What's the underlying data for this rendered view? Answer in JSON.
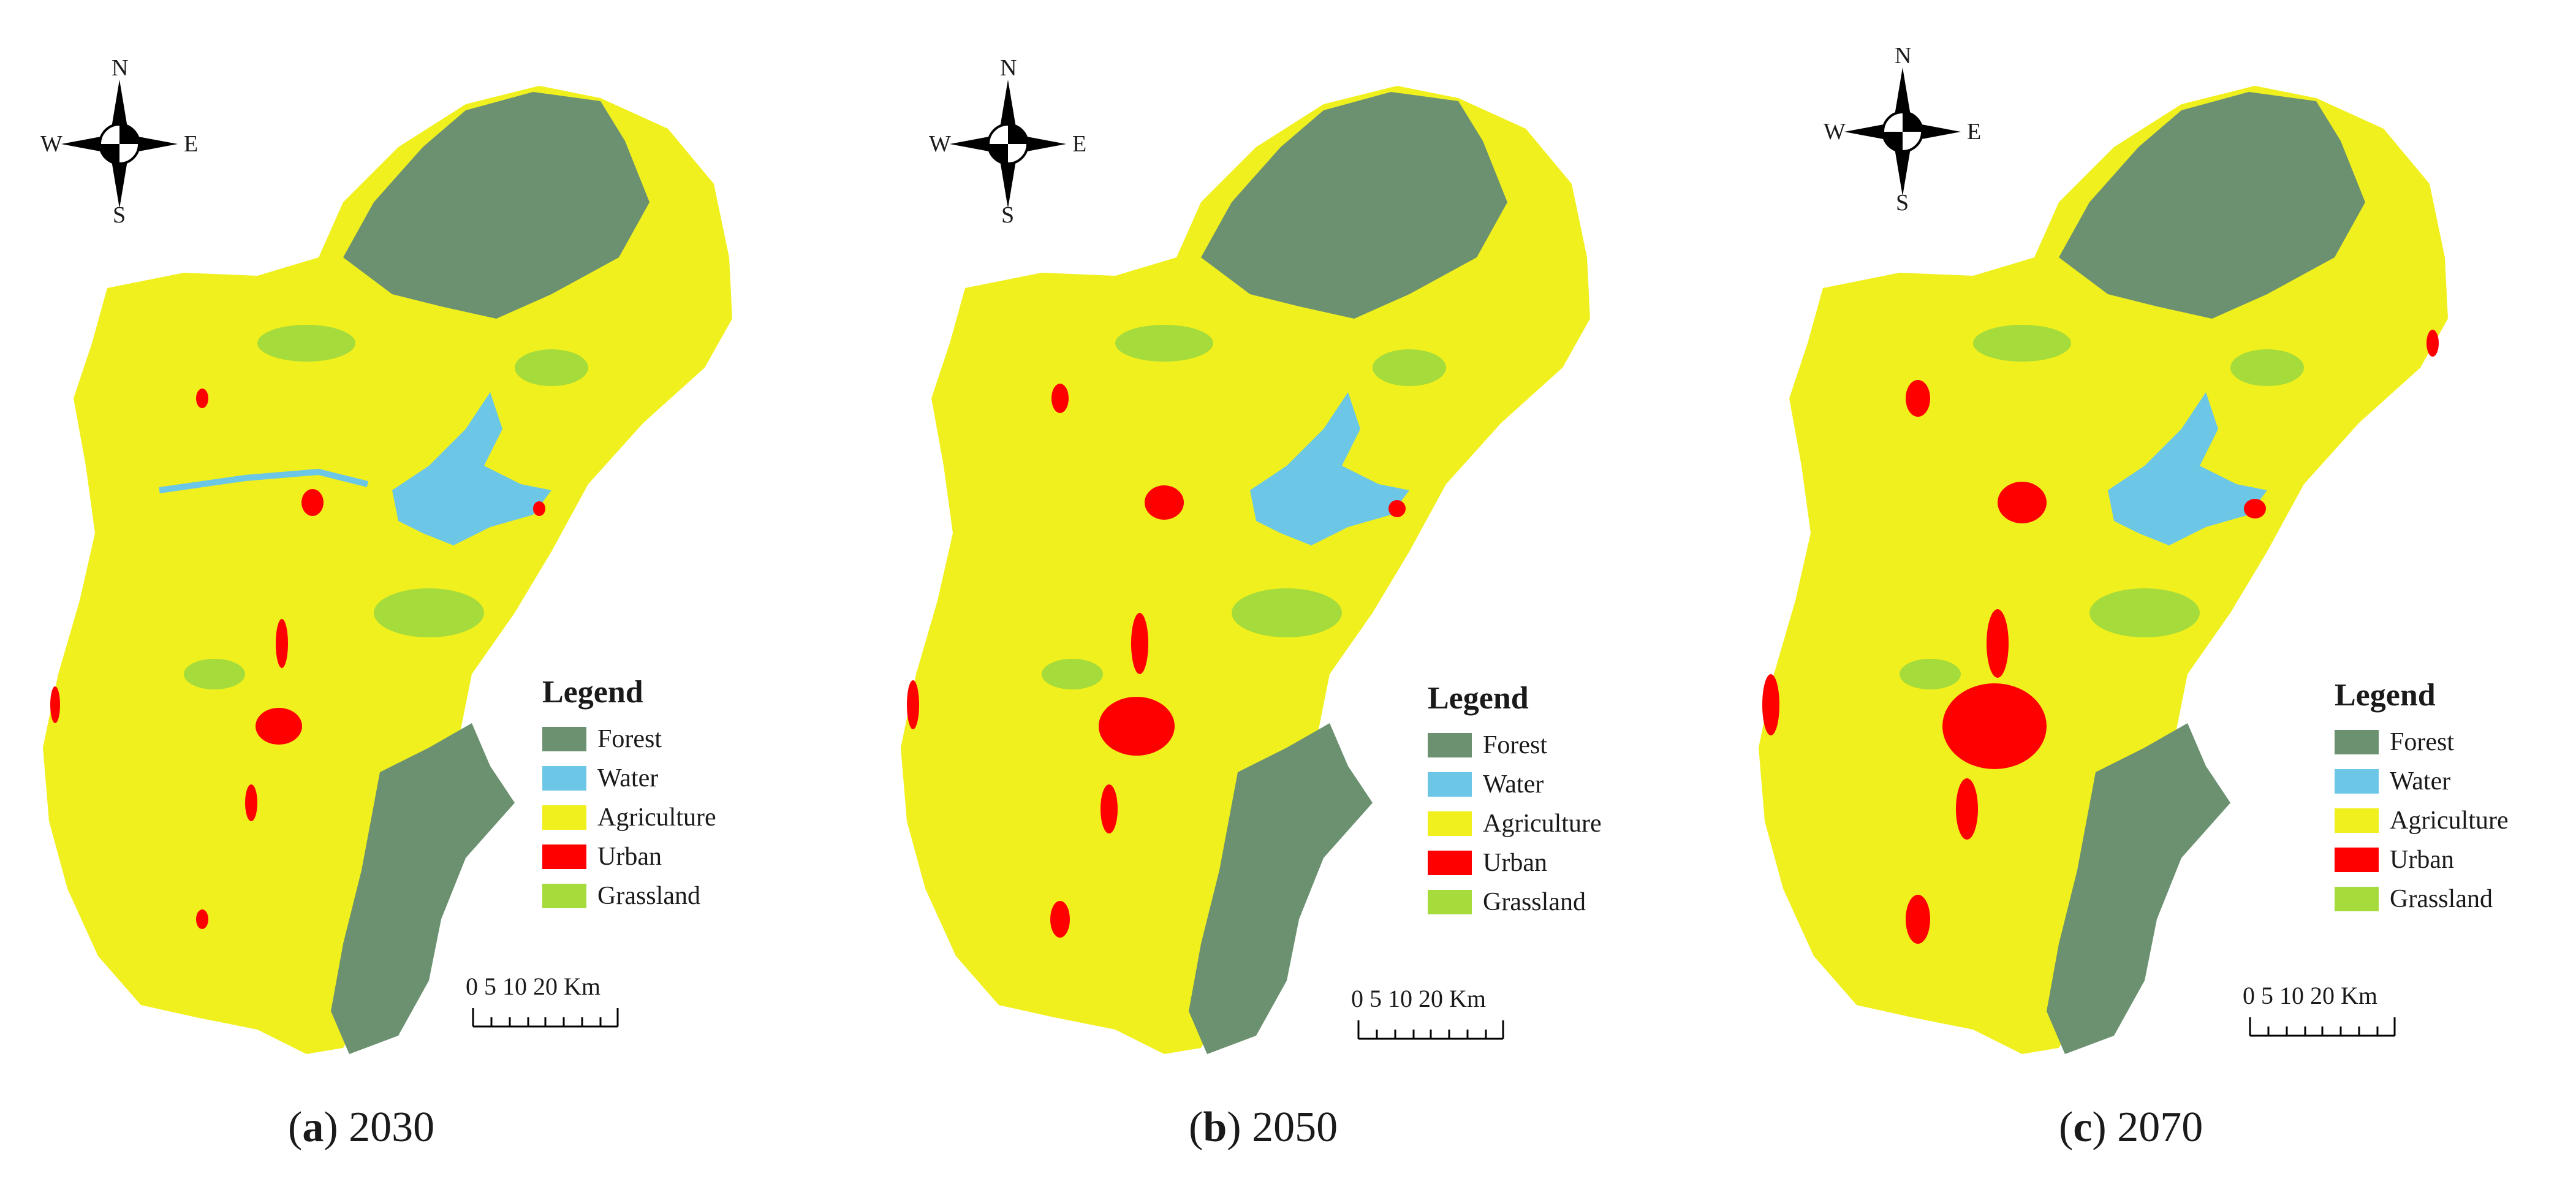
{
  "colors": {
    "forest": "#6b9170",
    "water": "#6cc6e6",
    "agriculture": "#f0f01e",
    "urban": "#ff0000",
    "grassland": "#a5db3a"
  },
  "compass": {
    "n": "N",
    "s": "S",
    "e": "E",
    "w": "W",
    "icon": "north-arrow-icon"
  },
  "legend": {
    "title": "Legend",
    "items": [
      {
        "label": "Forest",
        "class": "forest"
      },
      {
        "label": "Water",
        "class": "water"
      },
      {
        "label": "Agriculture",
        "class": "agriculture"
      },
      {
        "label": "Urban",
        "class": "urban"
      },
      {
        "label": "Grassland",
        "class": "grassland"
      }
    ]
  },
  "scalebar": {
    "labels": "0  5 10      20 Km"
  },
  "panels": [
    {
      "letter": "a",
      "year": "2030",
      "urban_extent": "small"
    },
    {
      "letter": "b",
      "year": "2050",
      "urban_extent": "medium"
    },
    {
      "letter": "c",
      "year": "2070",
      "urban_extent": "large"
    }
  ]
}
